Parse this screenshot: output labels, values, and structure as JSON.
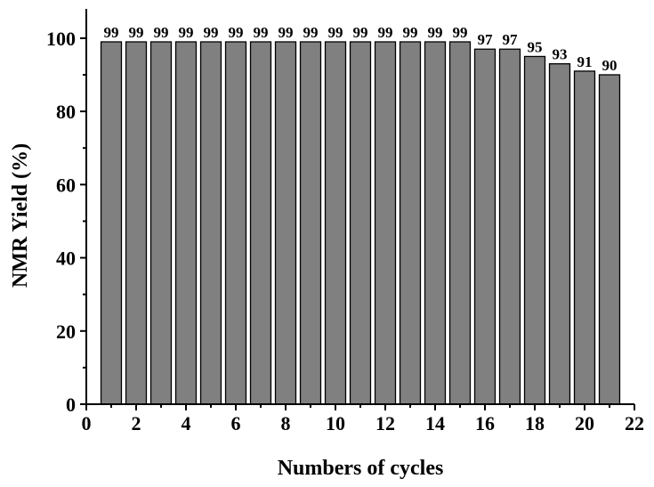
{
  "chart_data": {
    "type": "bar",
    "title": "",
    "xlabel": "Numbers of cycles",
    "ylabel": "NMR Yield (%)",
    "x": [
      1,
      2,
      3,
      4,
      5,
      6,
      7,
      8,
      9,
      10,
      11,
      12,
      13,
      14,
      15,
      16,
      17,
      18,
      19,
      20,
      21
    ],
    "values": [
      99,
      99,
      99,
      99,
      99,
      99,
      99,
      99,
      99,
      99,
      99,
      99,
      99,
      99,
      99,
      97,
      97,
      95,
      93,
      91,
      90
    ],
    "data_labels": [
      "99",
      "99",
      "99",
      "99",
      "99",
      "99",
      "99",
      "99",
      "99",
      "99",
      "99",
      "99",
      "99",
      "99",
      "99",
      "97",
      "97",
      "95",
      "93",
      "91",
      "90"
    ],
    "xlim": [
      0,
      22
    ],
    "ylim": [
      0,
      108
    ],
    "x_ticks": [
      "0",
      "2",
      "4",
      "6",
      "8",
      "10",
      "12",
      "14",
      "16",
      "18",
      "20",
      "22"
    ],
    "y_ticks": [
      "0",
      "20",
      "40",
      "60",
      "80",
      "100"
    ],
    "grid": false,
    "legend": "none",
    "bar_color": "#808080"
  }
}
